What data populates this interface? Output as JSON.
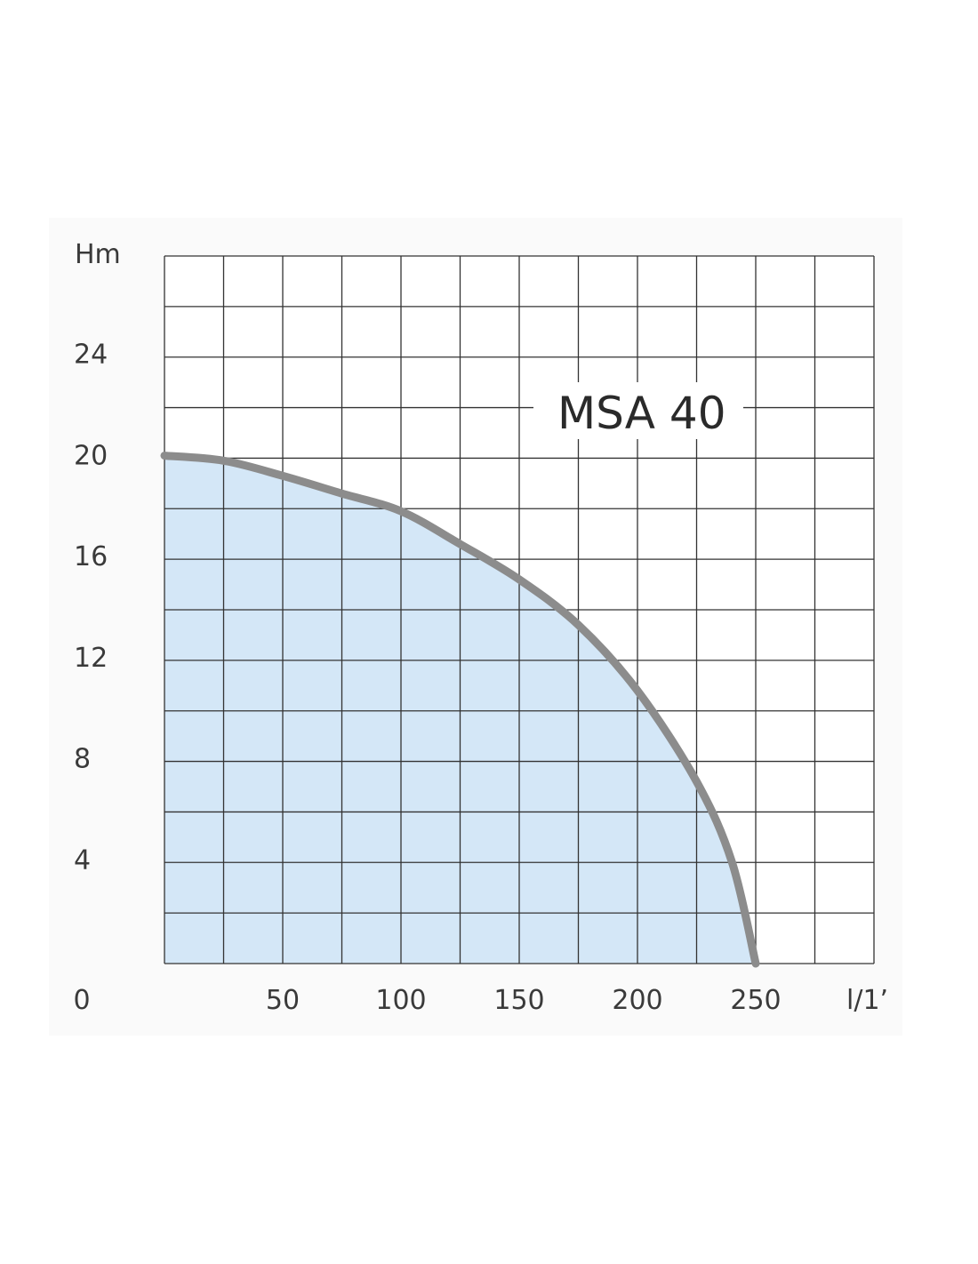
{
  "chart_data": {
    "type": "area",
    "title": "",
    "xlabel": "l/1’",
    "ylabel": "Hm",
    "xlim": [
      0,
      300
    ],
    "ylim": [
      0,
      28
    ],
    "grid": true,
    "x_ticks": [
      {
        "value": 0,
        "label": "0"
      },
      {
        "value": 50,
        "label": "50"
      },
      {
        "value": 100,
        "label": "100"
      },
      {
        "value": 150,
        "label": "150"
      },
      {
        "value": 200,
        "label": "200"
      },
      {
        "value": 250,
        "label": "250"
      }
    ],
    "y_ticks": [
      {
        "value": 4,
        "label": "4"
      },
      {
        "value": 8,
        "label": "8"
      },
      {
        "value": 12,
        "label": "12"
      },
      {
        "value": 16,
        "label": "16"
      },
      {
        "value": 20,
        "label": "20"
      },
      {
        "value": 24,
        "label": "24"
      }
    ],
    "series": [
      {
        "name": "MSA 40",
        "x": [
          0,
          25,
          50,
          75,
          100,
          125,
          150,
          175,
          200,
          225,
          240,
          250
        ],
        "y": [
          20.1,
          19.9,
          19.3,
          18.6,
          17.9,
          16.6,
          15.2,
          13.4,
          10.8,
          7.2,
          4.0,
          0.0
        ]
      }
    ],
    "colors": {
      "fill": "#d4e7f7",
      "curve": "#8c8c8c",
      "grid": "#333333",
      "frame_bg": "#fafafa"
    }
  }
}
